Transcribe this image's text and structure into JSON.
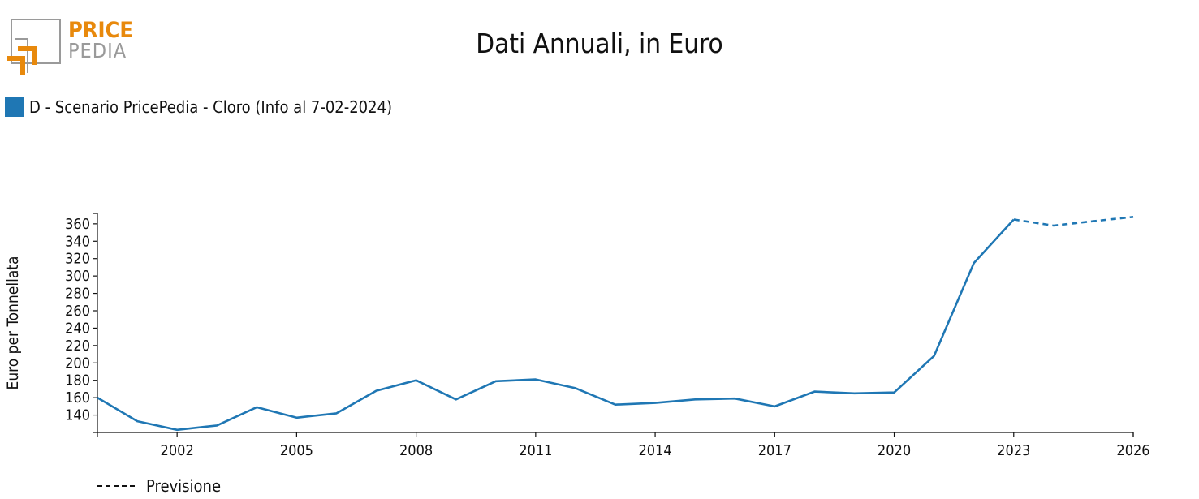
{
  "logo": {
    "line1": "PRICE",
    "line2": "PEDIA"
  },
  "colors": {
    "series": "#1f77b4",
    "logo_orange": "#e8890c",
    "logo_gray": "#9a9a9a"
  },
  "chart_data": {
    "type": "line",
    "title": "Dati Annuali, in Euro",
    "ylabel": "Euro per Tonnellata",
    "xlabel": "",
    "xlim": [
      2000,
      2026
    ],
    "ylim": [
      120,
      372
    ],
    "x_ticks": [
      2002,
      2005,
      2008,
      2011,
      2014,
      2017,
      2020,
      2023,
      2026
    ],
    "y_ticks": [
      140,
      160,
      180,
      200,
      220,
      240,
      260,
      280,
      300,
      320,
      340,
      360
    ],
    "grid": false,
    "legend_position": "top-left",
    "series": [
      {
        "name": "D - Scenario PricePedia - Cloro (Info al 7-02-2024)",
        "color": "#1f77b4",
        "points": [
          [
            2000,
            160
          ],
          [
            2001,
            133
          ],
          [
            2002,
            123
          ],
          [
            2003,
            128
          ],
          [
            2004,
            149
          ],
          [
            2005,
            137
          ],
          [
            2006,
            142
          ],
          [
            2007,
            168
          ],
          [
            2008,
            180
          ],
          [
            2009,
            158
          ],
          [
            2010,
            179
          ],
          [
            2011,
            181
          ],
          [
            2012,
            171
          ],
          [
            2013,
            152
          ],
          [
            2014,
            154
          ],
          [
            2015,
            158
          ],
          [
            2016,
            159
          ],
          [
            2017,
            150
          ],
          [
            2018,
            167
          ],
          [
            2019,
            165
          ],
          [
            2020,
            166
          ],
          [
            2021,
            208
          ],
          [
            2022,
            315
          ],
          [
            2023,
            365
          ]
        ],
        "forecast_points": [
          [
            2023,
            365
          ],
          [
            2024,
            358
          ],
          [
            2025,
            363
          ],
          [
            2026,
            368
          ]
        ]
      }
    ],
    "forecast_label": "Previsione"
  }
}
